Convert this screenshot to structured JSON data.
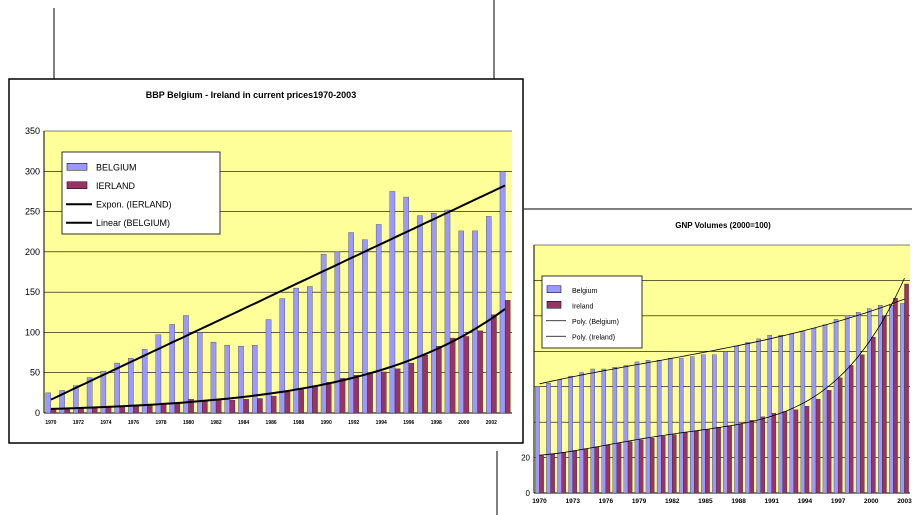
{
  "chart_data": [
    {
      "type": "bar",
      "title": "BBP Belgium - Ireland in current prices1970-2003",
      "xlabel": "",
      "ylabel": "",
      "ylim": [
        0,
        350
      ],
      "yticks": [
        "0",
        "50",
        "100",
        "150",
        "200",
        "250",
        "300",
        "350"
      ],
      "xticks": [
        "1970",
        "1972",
        "1974",
        "1976",
        "1978",
        "1980",
        "1982",
        "1984",
        "1986",
        "1988",
        "1990",
        "1992",
        "1994",
        "1996",
        "1998",
        "2000",
        "2002"
      ],
      "categories": [
        1970,
        1971,
        1972,
        1973,
        1974,
        1975,
        1976,
        1977,
        1978,
        1979,
        1980,
        1981,
        1982,
        1983,
        1984,
        1985,
        1986,
        1987,
        1988,
        1989,
        1990,
        1991,
        1992,
        1993,
        1994,
        1995,
        1996,
        1997,
        1998,
        1999,
        2000,
        2001,
        2002,
        2003
      ],
      "series": [
        {
          "name": "BELGIUM",
          "color": "#9999ff",
          "values": [
            25,
            28,
            34,
            44,
            52,
            62,
            68,
            79,
            97,
            110,
            121,
            100,
            88,
            84,
            83,
            84,
            116,
            142,
            155,
            157,
            197,
            200,
            224,
            215,
            234,
            275,
            268,
            245,
            248,
            252,
            226,
            226,
            244,
            300
          ]
        },
        {
          "name": "IERLAND",
          "color": "#993366",
          "values": [
            5,
            6,
            6,
            7,
            8,
            8,
            9,
            10,
            11,
            13,
            17,
            16,
            16,
            16,
            17,
            18,
            21,
            26,
            29,
            34,
            38,
            43,
            47,
            49,
            51,
            55,
            62,
            72,
            83,
            93,
            95,
            102,
            122,
            140
          ]
        }
      ],
      "trendlines": [
        {
          "name": "Expon. (IERLAND)"
        },
        {
          "name": "Linear (BELGIUM)"
        }
      ],
      "legend_position": "top-left",
      "plot_background": "#ffff99",
      "grid": true
    },
    {
      "type": "bar",
      "title": "GNP Volumes (2000=100)",
      "xlabel": "",
      "ylabel": "",
      "ylim": [
        0,
        140
      ],
      "yticks": [
        "0",
        "20"
      ],
      "xticks": [
        "1970",
        "1973",
        "1976",
        "1979",
        "1982",
        "1985",
        "1988",
        "1991",
        "1994",
        "1997",
        "2000",
        "2003"
      ],
      "categories": [
        1970,
        1971,
        1972,
        1973,
        1974,
        1975,
        1976,
        1977,
        1978,
        1979,
        1980,
        1981,
        1982,
        1983,
        1984,
        1985,
        1986,
        1987,
        1988,
        1989,
        1990,
        1991,
        1992,
        1993,
        1994,
        1995,
        1996,
        1997,
        1998,
        1999,
        2000,
        2001,
        2002,
        2003
      ],
      "series": [
        {
          "name": "Belgium",
          "color": "#9999ff",
          "values": [
            60,
            62,
            64,
            66,
            68,
            70,
            70,
            71,
            72,
            74,
            75,
            75,
            76,
            76,
            77,
            78,
            78,
            80,
            83,
            85,
            87,
            89,
            89,
            90,
            91,
            93,
            95,
            98,
            100,
            102,
            104,
            106,
            106,
            107
          ]
        },
        {
          "name": "Ireland",
          "color": "#993366",
          "values": [
            21,
            22,
            23,
            24,
            25,
            26,
            27,
            28,
            29,
            30,
            31,
            32,
            33,
            34,
            35,
            36,
            37,
            38,
            39,
            41,
            43,
            45,
            46,
            47,
            49,
            53,
            58,
            65,
            72,
            78,
            88,
            100,
            110,
            118
          ]
        }
      ],
      "trendlines": [
        {
          "name": "Poly. (Belgium)"
        },
        {
          "name": "Poly. (Ireland)"
        }
      ],
      "legend_position": "top-left",
      "plot_background": "#ffff99",
      "grid": true
    }
  ]
}
